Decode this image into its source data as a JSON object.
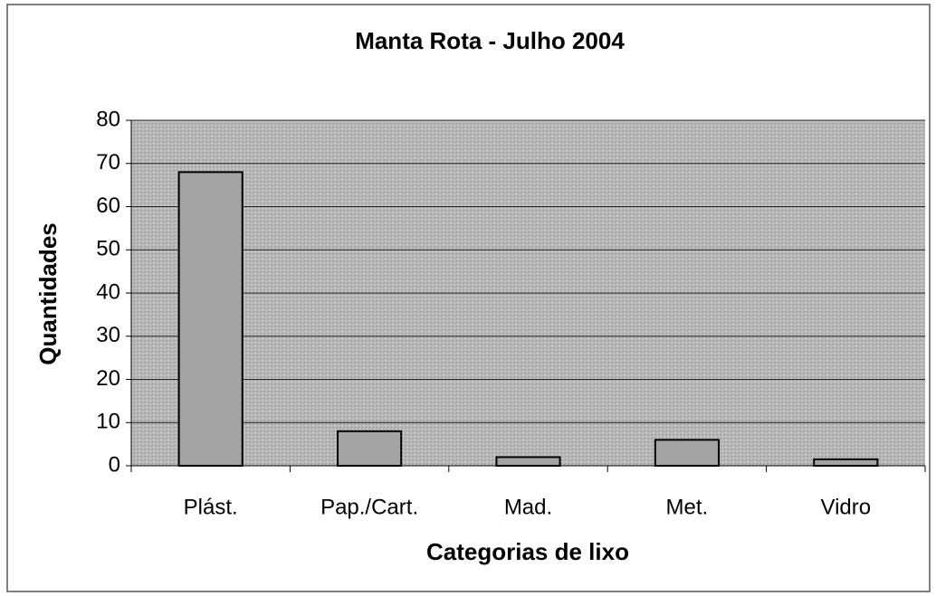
{
  "chart_data": {
    "type": "bar",
    "title": "Manta Rota - Julho 2004",
    "x_label": "Categorias de lixo",
    "y_label": "Quantidades",
    "categories": [
      "Plást.",
      "Pap./Cart.",
      "Mad.",
      "Met.",
      "Vidro"
    ],
    "values": [
      68,
      8,
      2,
      6,
      1.5
    ],
    "color": "#a3a3a3",
    "ylim": [
      0,
      80
    ],
    "yticks": [
      0,
      10,
      20,
      30,
      40,
      50,
      60,
      70,
      80
    ],
    "grid": true
  }
}
